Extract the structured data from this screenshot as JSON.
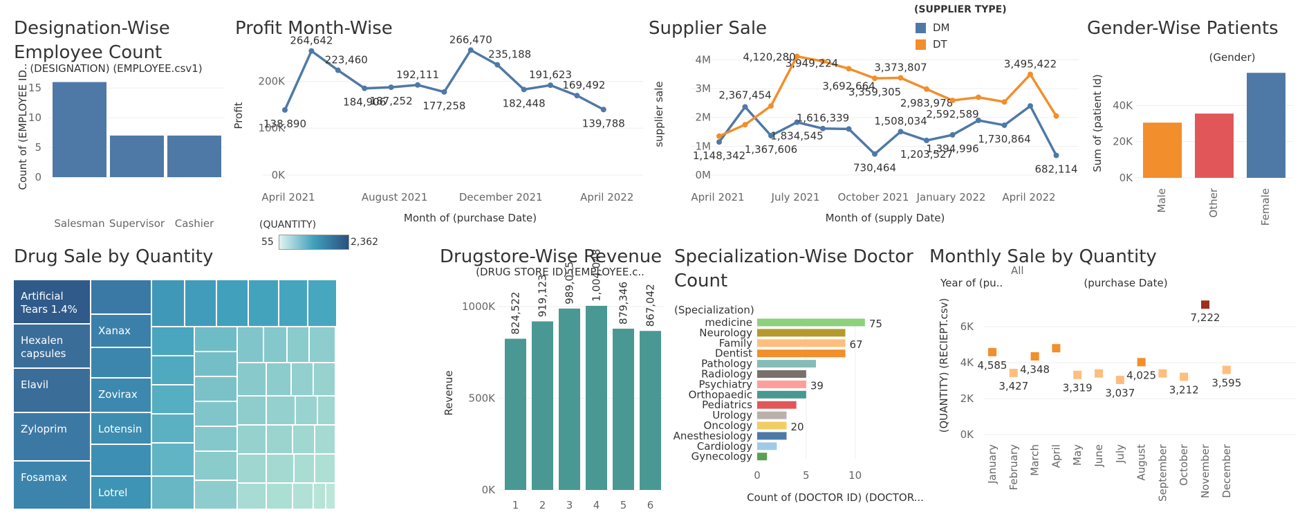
{
  "legend_supplier": {
    "title": "(SUPPLIER TYPE)",
    "items": [
      {
        "name": "DM",
        "color": "#4e79a7"
      },
      {
        "name": "DT",
        "color": "#f28e2b"
      }
    ]
  },
  "legend_quantity": {
    "title": "(QUANTITY)",
    "min": "55",
    "max": "2,362"
  },
  "chart_data": [
    {
      "id": "designation",
      "type": "bar",
      "title": "Designation-Wise\nEmployee Count",
      "subtitle": "(DESIGNATION) (EMPLOYEE.csv1)",
      "ylabel": "Count of (EMPLOYEE ID..",
      "categories": [
        "Salesman",
        "Supervisor",
        "Cashier"
      ],
      "values": [
        16,
        7,
        7
      ],
      "yticks": [
        0,
        5,
        10,
        15
      ],
      "ylim": [
        0,
        17
      ],
      "color": "#4e79a7"
    },
    {
      "id": "profit",
      "type": "line",
      "title": "Profit Month-Wise",
      "xlabel": "Month of (purchase Date)",
      "ylabel": "Profit",
      "x_ticks": [
        "April 2021",
        "August 2021",
        "December 2021",
        "April 2022"
      ],
      "y_ticks": [
        "0K",
        "100K",
        "200K"
      ],
      "ylim": [
        0,
        270000
      ],
      "months": [
        "2021-04",
        "2021-05",
        "2021-06",
        "2021-07",
        "2021-08",
        "2021-09",
        "2021-10",
        "2021-11",
        "2021-12",
        "2022-01",
        "2022-02",
        "2022-03",
        "2022-04"
      ],
      "values": [
        138890,
        264642,
        223460,
        184906,
        187252,
        192111,
        177258,
        266470,
        235188,
        182448,
        191623,
        169492,
        139788
      ],
      "labels": [
        "138,890",
        "264,642",
        "223,460",
        "184,906",
        "187,252",
        "192,111",
        "177,258",
        "266,470",
        "235,188",
        "182,448",
        "191,623",
        "169,492",
        "139,788"
      ],
      "color": "#4e79a7"
    },
    {
      "id": "supplier",
      "type": "line",
      "title": "Supplier Sale",
      "xlabel": "Month of (supply Date)",
      "ylabel": "supplier sale",
      "x_ticks": [
        "April 2021",
        "July 2021",
        "October 2021",
        "January 2022",
        "April 2022"
      ],
      "y_ticks": [
        "0M",
        "1M",
        "2M",
        "3M",
        "4M"
      ],
      "ylim": [
        0,
        4300000
      ],
      "months": [
        "2021-04",
        "2021-05",
        "2021-06",
        "2021-07",
        "2021-08",
        "2021-09",
        "2021-10",
        "2021-11",
        "2021-12",
        "2022-01",
        "2022-02",
        "2022-03",
        "2022-04",
        "2022-05"
      ],
      "series": [
        {
          "name": "DM",
          "color": "#4e79a7",
          "values": [
            1148342,
            2367454,
            1367606,
            1834545,
            1616339,
            1600000,
            730464,
            1508034,
            1203527,
            1394996,
            1900000,
            1730864,
            2400000,
            682114
          ],
          "labels": [
            "1,148,342",
            "2,367,454",
            "1,367,606",
            "1,834,545",
            "1,616,339",
            "",
            "730,464",
            "1,508,034",
            "1,203,527",
            "1,394,996",
            "",
            "1,730,864",
            "",
            "682,114"
          ]
        },
        {
          "name": "DT",
          "color": "#f28e2b",
          "values": [
            1350000,
            1750000,
            2400000,
            4120280,
            3949224,
            3692664,
            3359305,
            3373807,
            2983978,
            2592589,
            2700000,
            2540000,
            3495422,
            2050000
          ],
          "labels": [
            "",
            "",
            "",
            "4,120,280",
            "3,949,224",
            "3,692,664",
            "3,359,305",
            "3,373,807",
            "2,983,978",
            "2,592,589",
            "",
            "",
            "3,495,422",
            ""
          ]
        }
      ]
    },
    {
      "id": "gender",
      "type": "bar",
      "title": "Gender-Wise Patients",
      "subtitle": "(Gender)",
      "ylabel": "Sum of (patient Id)",
      "categories": [
        "Male",
        "Other",
        "Female"
      ],
      "values": [
        30500,
        35500,
        58000
      ],
      "colors": [
        "#f28e2b",
        "#e15759",
        "#4e79a7"
      ],
      "y_ticks": [
        "0K",
        "20K",
        "40K"
      ],
      "ylim": [
        0,
        60000
      ]
    },
    {
      "id": "drugsale",
      "type": "treemap",
      "title": "Drug Sale by Quantity",
      "labels": [
        "Artificial Tears 1.4%",
        "Xanax",
        "Hexalen capsules",
        "Elavil",
        "Zovirax",
        "Zyloprim",
        "Lotensin",
        "Fosamax",
        "Lotrel"
      ]
    },
    {
      "id": "revenue",
      "type": "bar",
      "title": "Drugstore-Wise Revenue",
      "subtitle": "(DRUG STORE ID) (EMPLOYEE.c..",
      "ylabel": "Revenue",
      "categories": [
        "1",
        "2",
        "3",
        "4",
        "5",
        "6"
      ],
      "values": [
        824522,
        919123,
        989055,
        1004048,
        879346,
        867042
      ],
      "labels": [
        "824,522",
        "919,123",
        "989,055",
        "1,004,048",
        "879,346",
        "867,042"
      ],
      "y_ticks": [
        "0K",
        "500K",
        "1000K"
      ],
      "ylim": [
        0,
        1200000
      ],
      "color": "#499894"
    },
    {
      "id": "specialization",
      "type": "bar",
      "title": "Specialization-Wise Doctor\nCount",
      "subtitle": "(Specialization)",
      "xlabel": "Count of (DOCTOR ID) (DOCTOR...",
      "categories": [
        "medicine",
        "Neurology",
        "Family",
        "Dentist",
        "Pathology",
        "Radiology",
        "Psychiatry",
        "Orthopaedic",
        "Pediatrics",
        "Urology",
        "Oncology",
        "Anesthesiology",
        "Cardiology",
        "Gynecology"
      ],
      "values": [
        11,
        9,
        9,
        9,
        6,
        5,
        5,
        5,
        4,
        3,
        3,
        3,
        2,
        1
      ],
      "labels": [
        "75",
        "",
        "67",
        "",
        "",
        "",
        "39",
        "",
        "",
        "",
        "20",
        "",
        "",
        ""
      ],
      "colors": [
        "#8cd17d",
        "#b6992d",
        "#ffbe7d",
        "#f28e2b",
        "#86bcb6",
        "#79706e",
        "#ff9d9a",
        "#499894",
        "#e15759",
        "#bab0ac",
        "#f1ce63",
        "#4e79a7",
        "#a0cbe8",
        "#59a14f"
      ],
      "x_ticks": [
        0,
        5,
        10
      ],
      "xlim": [
        0,
        12
      ]
    },
    {
      "id": "monthly",
      "type": "scatter",
      "title": "Monthly Sale by Quantity",
      "filter_label": "Year of (pu..",
      "filter_value": "All",
      "subtitle": "(purchase Date)",
      "ylabel": "(QUANTITY) (RECIEPT.csv)",
      "categories": [
        "January",
        "February",
        "March",
        "April",
        "May",
        "June",
        "July",
        "August",
        "September",
        "October",
        "November",
        "December"
      ],
      "values": [
        4585,
        3427,
        4348,
        4800,
        3319,
        3400,
        3037,
        4025,
        3400,
        3212,
        7222,
        3595
      ],
      "labels": [
        "4,585",
        "3,427",
        "4,348",
        "",
        "3,319",
        "",
        "3,037",
        "4,025",
        "",
        "3,212",
        "7,222",
        "3,595"
      ],
      "colors": [
        "#f28e2b",
        "#ffbe7d",
        "#f28e2b",
        "#f28e2b",
        "#ffbe7d",
        "#ffbe7d",
        "#ffbe7d",
        "#f28e2b",
        "#ffbe7d",
        "#ffbe7d",
        "#9c2f1e",
        "#ffbe7d"
      ],
      "y_ticks": [
        "0K",
        "2K",
        "4K",
        "6K"
      ],
      "ylim": [
        0,
        8000
      ]
    }
  ]
}
